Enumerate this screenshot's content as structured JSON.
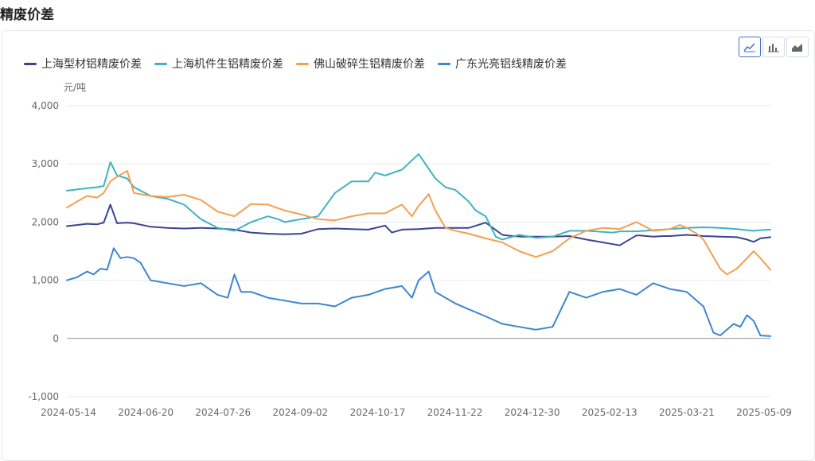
{
  "page": {
    "title": "精废价差"
  },
  "toolbar": {
    "buttons": [
      {
        "name": "line-chart-icon",
        "active": true
      },
      {
        "name": "bar-chart-icon",
        "active": false
      },
      {
        "name": "area-chart-icon",
        "active": false
      }
    ]
  },
  "chart_data": {
    "type": "line",
    "unit": "元/吨",
    "ylim": [
      -1000,
      4000
    ],
    "yticks": [
      "-1,000",
      "0",
      "1,000",
      "2,000",
      "3,000",
      "4,000"
    ],
    "ytick_values": [
      -1000,
      0,
      1000,
      2000,
      3000,
      4000
    ],
    "xticks": [
      "2024-05-14",
      "2024-06-20",
      "2024-07-26",
      "2024-09-02",
      "2024-10-17",
      "2024-11-22",
      "2024-12-30",
      "2025-02-13",
      "2025-03-21",
      "2025-05-09"
    ],
    "grid": true,
    "legend_position": "top-left",
    "series": [
      {
        "name": "上海型材铝精废价差",
        "color": "#3b4490",
        "x": [
          0,
          3,
          6,
          9,
          11,
          13,
          15,
          18,
          20,
          25,
          30,
          35,
          40,
          45,
          50,
          55,
          60,
          65,
          70,
          75,
          80,
          85,
          90,
          95,
          97,
          100,
          105,
          110,
          115,
          120,
          125,
          130,
          133,
          136,
          140,
          145,
          150,
          155,
          160,
          165,
          170,
          171,
          175,
          178,
          180,
          185,
          188,
          190,
          195,
          200,
          203,
          205,
          207,
          210
        ],
        "values": [
          1930,
          1950,
          1970,
          1960,
          1990,
          2300,
          1980,
          1990,
          1980,
          1920,
          1900,
          1890,
          1900,
          1890,
          1870,
          1820,
          1800,
          1790,
          1800,
          1880,
          1890,
          1880,
          1870,
          1940,
          1820,
          1870,
          1880,
          1900,
          1900,
          1900,
          1990,
          1780,
          1760,
          1750,
          1750,
          1750,
          1760,
          1700,
          1650,
          1600,
          1770,
          1770,
          1750,
          1760,
          1760,
          1780,
          1770,
          1760,
          1750,
          1740,
          1700,
          1660,
          1720,
          1740
        ]
      },
      {
        "name": "上海机件生铝精废价差",
        "color": "#3fb3c0",
        "x": [
          0,
          3,
          6,
          9,
          11,
          13,
          15,
          18,
          20,
          25,
          30,
          35,
          40,
          45,
          50,
          55,
          60,
          63,
          65,
          70,
          75,
          80,
          85,
          90,
          92,
          95,
          100,
          105,
          110,
          113,
          116,
          120,
          122,
          125,
          128,
          130,
          135,
          140,
          145,
          150,
          155,
          160,
          163,
          165,
          170,
          175,
          180,
          185,
          190,
          195,
          200,
          203,
          205,
          207,
          210
        ],
        "values": [
          2540,
          2560,
          2580,
          2600,
          2620,
          3030,
          2800,
          2750,
          2600,
          2450,
          2400,
          2300,
          2050,
          1900,
          1850,
          2000,
          2100,
          2050,
          2000,
          2050,
          2100,
          2500,
          2700,
          2700,
          2850,
          2800,
          2900,
          3170,
          2750,
          2600,
          2550,
          2350,
          2200,
          2100,
          1750,
          1700,
          1780,
          1730,
          1750,
          1850,
          1850,
          1830,
          1820,
          1840,
          1840,
          1860,
          1880,
          1900,
          1910,
          1900,
          1880,
          1860,
          1850,
          1860,
          1870
        ]
      },
      {
        "name": "佛山破碎生铝精废价差",
        "color": "#f2a050",
        "x": [
          0,
          3,
          6,
          9,
          11,
          13,
          15,
          18,
          20,
          25,
          30,
          35,
          40,
          45,
          50,
          55,
          60,
          65,
          70,
          75,
          80,
          85,
          90,
          95,
          100,
          103,
          105,
          108,
          110,
          113,
          116,
          120,
          125,
          130,
          135,
          140,
          145,
          150,
          155,
          160,
          165,
          170,
          175,
          180,
          183,
          185,
          188,
          190,
          193,
          195,
          197,
          200,
          205,
          207,
          210
        ],
        "values": [
          2250,
          2350,
          2450,
          2420,
          2500,
          2700,
          2780,
          2880,
          2500,
          2450,
          2430,
          2470,
          2380,
          2180,
          2100,
          2310,
          2300,
          2200,
          2130,
          2050,
          2030,
          2100,
          2150,
          2150,
          2300,
          2100,
          2280,
          2480,
          2200,
          1900,
          1850,
          1800,
          1720,
          1650,
          1500,
          1400,
          1500,
          1720,
          1850,
          1900,
          1880,
          2000,
          1850,
          1880,
          1950,
          1900,
          1800,
          1700,
          1400,
          1200,
          1100,
          1200,
          1500,
          1380,
          1180
        ]
      },
      {
        "name": "广东光亮铝线精废价差",
        "color": "#3d86cf",
        "x": [
          0,
          3,
          6,
          8,
          10,
          12,
          14,
          16,
          18,
          20,
          22,
          25,
          30,
          35,
          40,
          45,
          48,
          50,
          52,
          55,
          60,
          65,
          70,
          75,
          80,
          85,
          90,
          95,
          100,
          103,
          105,
          108,
          110,
          113,
          116,
          120,
          125,
          130,
          135,
          140,
          145,
          150,
          155,
          160,
          165,
          170,
          175,
          180,
          185,
          188,
          190,
          193,
          195,
          197,
          199,
          201,
          203,
          205,
          207,
          210
        ],
        "values": [
          1000,
          1050,
          1150,
          1100,
          1200,
          1180,
          1550,
          1380,
          1400,
          1380,
          1300,
          1000,
          950,
          900,
          950,
          750,
          700,
          1100,
          800,
          800,
          700,
          650,
          600,
          600,
          550,
          700,
          750,
          850,
          900,
          700,
          1000,
          1150,
          800,
          700,
          600,
          500,
          380,
          250,
          200,
          150,
          200,
          800,
          700,
          800,
          850,
          750,
          950,
          850,
          800,
          650,
          550,
          100,
          50,
          150,
          250,
          200,
          400,
          300,
          50,
          40
        ]
      }
    ],
    "x_index_max": 210
  }
}
